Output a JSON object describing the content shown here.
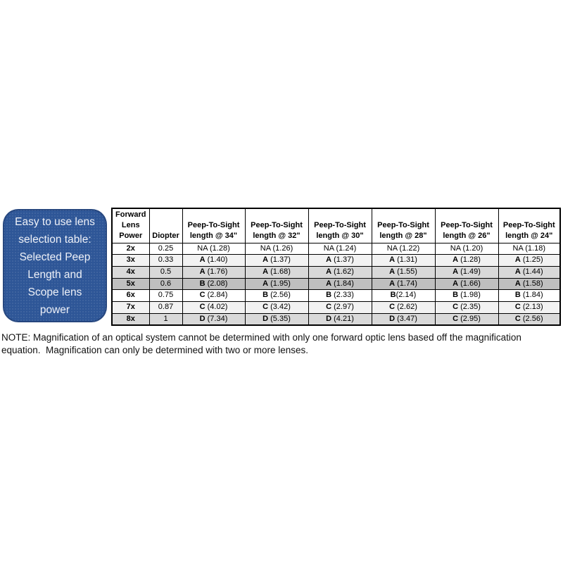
{
  "callout": {
    "text": "Easy to use lens\nselection table:\nSelected Peep\nLength and\nScope lens\npower",
    "background_color": "#2e5697",
    "text_color": "#eef1f8"
  },
  "table": {
    "columns": [
      {
        "lines": [
          "Forward",
          "Lens",
          "Power"
        ]
      },
      {
        "lines": [
          "Diopter"
        ]
      },
      {
        "lines": [
          "Peep-To-Sight",
          "length @ 34\""
        ]
      },
      {
        "lines": [
          "Peep-To-Sight",
          "length @ 32\""
        ]
      },
      {
        "lines": [
          "Peep-To-Sight",
          "length @ 30\""
        ]
      },
      {
        "lines": [
          "Peep-To-Sight",
          "length @ 28\""
        ]
      },
      {
        "lines": [
          "Peep-To-Sight",
          "length @ 26\""
        ]
      },
      {
        "lines": [
          "Peep-To-Sight",
          "length @ 24\""
        ]
      }
    ],
    "rows": [
      {
        "power": "2x",
        "diopter": "0.25",
        "shade": "#ffffff",
        "cells": [
          [
            "",
            "NA (1.28)"
          ],
          [
            "",
            "NA (1.26)"
          ],
          [
            "",
            "NA (1.24)"
          ],
          [
            "",
            "NA (1.22)"
          ],
          [
            "",
            "NA (1.20)"
          ],
          [
            "",
            "NA (1.18)"
          ]
        ]
      },
      {
        "power": "3x",
        "diopter": "0.33",
        "shade": "#f2f2f2",
        "cells": [
          [
            "A",
            " (1.40)"
          ],
          [
            "A",
            " (1.37)"
          ],
          [
            "A",
            " (1.37)"
          ],
          [
            "A",
            " (1.31)"
          ],
          [
            "A",
            " (1.28)"
          ],
          [
            "A",
            " (1.25)"
          ]
        ]
      },
      {
        "power": "4x",
        "diopter": "0.5",
        "shade": "#d9d9d9",
        "cells": [
          [
            "A",
            " (1.76)"
          ],
          [
            "A",
            " (1.68)"
          ],
          [
            "A",
            " (1.62)"
          ],
          [
            "A",
            " (1.55)"
          ],
          [
            "A",
            " (1.49)"
          ],
          [
            "A",
            " (1.44)"
          ]
        ]
      },
      {
        "power": "5x",
        "diopter": "0.6",
        "shade": "#bfbfbf",
        "cells": [
          [
            "B",
            " (2.08)"
          ],
          [
            "A",
            " (1.95)"
          ],
          [
            "A",
            " (1.84)"
          ],
          [
            "A",
            " (1.74)"
          ],
          [
            "A",
            " (1.66)"
          ],
          [
            "A",
            " (1.58)"
          ]
        ]
      },
      {
        "power": "6x",
        "diopter": "0.75",
        "shade": "#ffffff",
        "cells": [
          [
            "C",
            " (2.84)"
          ],
          [
            "B",
            " (2.56)"
          ],
          [
            "B",
            " (2.33)"
          ],
          [
            "B",
            "(2.14)"
          ],
          [
            "B",
            " (1.98)"
          ],
          [
            "B",
            " (1.84)"
          ]
        ]
      },
      {
        "power": "7x",
        "diopter": "0.87",
        "shade": "#f2f2f2",
        "cells": [
          [
            "C",
            " (4.02)"
          ],
          [
            "C",
            " (3.42)"
          ],
          [
            "C",
            " (2.97)"
          ],
          [
            "C",
            " (2.62)"
          ],
          [
            "C",
            " (2.35)"
          ],
          [
            "C",
            " (2.13)"
          ]
        ]
      },
      {
        "power": "8x",
        "diopter": "1",
        "shade": "#d9d9d9",
        "cells": [
          [
            "D",
            " (7.34)"
          ],
          [
            "D",
            " (5.35)"
          ],
          [
            "D",
            " (4.21)"
          ],
          [
            "D",
            " (3.47)"
          ],
          [
            "C",
            " (2.95)"
          ],
          [
            "C",
            " (2.56)"
          ]
        ]
      }
    ],
    "row_shades": [
      "#ffffff",
      "#f2f2f2",
      "#d9d9d9",
      "#bfbfbf",
      "#ffffff",
      "#f2f2f2",
      "#d9d9d9"
    ]
  },
  "note": {
    "text": "NOTE: Magnification of an optical system cannot be determined with only one forward optic lens based off the magnification\nequation.  Magnification can only be determined with two or more lenses."
  }
}
